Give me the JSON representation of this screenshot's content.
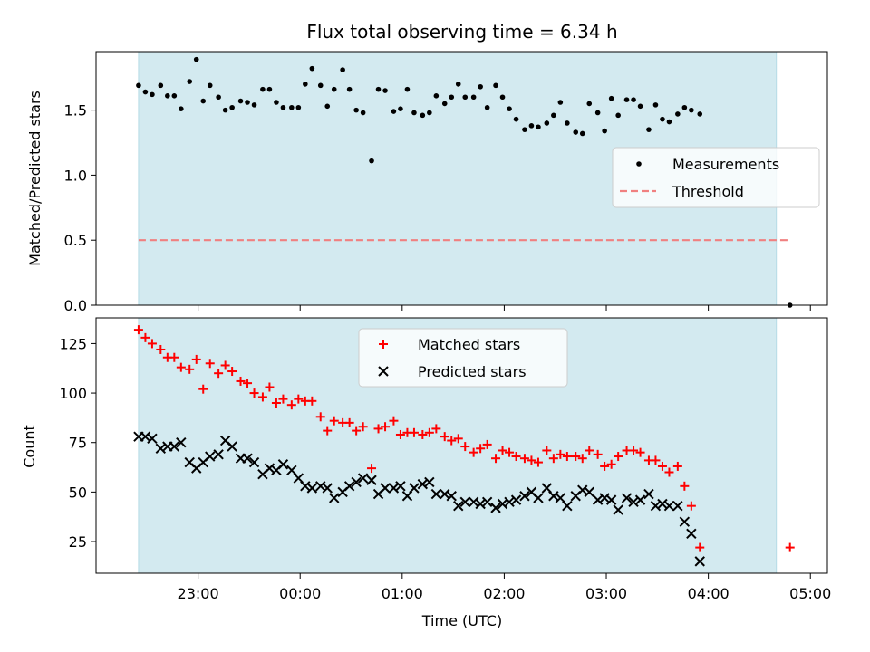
{
  "chart_data": [
    {
      "type": "scatter",
      "title": "Flux total observing time = 6.34 h",
      "xlabel": "",
      "ylabel": "Matched/Predicted stars",
      "ylim": [
        0,
        1.95
      ],
      "yticks": [
        0.0,
        0.5,
        1.0,
        1.5
      ],
      "ytick_labels": [
        "0.0",
        "0.5",
        "1.0",
        "1.5"
      ],
      "grid": false,
      "legend_position": "center-right",
      "observing_window": {
        "start": "22:25",
        "end": "04:40",
        "color": "#d3eaf0"
      },
      "threshold": {
        "name": "Threshold",
        "value": 0.5,
        "color": "#f08080",
        "x_start": "22:25",
        "x_end": "04:48"
      },
      "series": [
        {
          "name": "Measurements",
          "color": "#000000",
          "points": [
            [
              "22:25",
              1.69
            ],
            [
              "22:29",
              1.64
            ],
            [
              "22:33",
              1.62
            ],
            [
              "22:38",
              1.69
            ],
            [
              "22:42",
              1.61
            ],
            [
              "22:46",
              1.61
            ],
            [
              "22:50",
              1.51
            ],
            [
              "22:55",
              1.72
            ],
            [
              "22:59",
              1.89
            ],
            [
              "23:03",
              1.57
            ],
            [
              "23:07",
              1.69
            ],
            [
              "23:12",
              1.6
            ],
            [
              "23:16",
              1.5
            ],
            [
              "23:20",
              1.52
            ],
            [
              "23:25",
              1.57
            ],
            [
              "23:29",
              1.56
            ],
            [
              "23:33",
              1.54
            ],
            [
              "23:38",
              1.66
            ],
            [
              "23:42",
              1.66
            ],
            [
              "23:46",
              1.56
            ],
            [
              "23:50",
              1.52
            ],
            [
              "23:55",
              1.52
            ],
            [
              "23:59",
              1.52
            ],
            [
              "00:03",
              1.7
            ],
            [
              "00:07",
              1.82
            ],
            [
              "00:12",
              1.69
            ],
            [
              "00:16",
              1.53
            ],
            [
              "00:20",
              1.66
            ],
            [
              "00:25",
              1.81
            ],
            [
              "00:29",
              1.66
            ],
            [
              "00:33",
              1.5
            ],
            [
              "00:37",
              1.48
            ],
            [
              "00:42",
              1.11
            ],
            [
              "00:46",
              1.66
            ],
            [
              "00:50",
              1.65
            ],
            [
              "00:55",
              1.49
            ],
            [
              "00:59",
              1.51
            ],
            [
              "01:03",
              1.66
            ],
            [
              "01:07",
              1.48
            ],
            [
              "01:12",
              1.46
            ],
            [
              "01:16",
              1.48
            ],
            [
              "01:20",
              1.61
            ],
            [
              "01:25",
              1.55
            ],
            [
              "01:29",
              1.6
            ],
            [
              "01:33",
              1.7
            ],
            [
              "01:37",
              1.6
            ],
            [
              "01:42",
              1.6
            ],
            [
              "01:46",
              1.68
            ],
            [
              "01:50",
              1.52
            ],
            [
              "01:55",
              1.69
            ],
            [
              "01:59",
              1.6
            ],
            [
              "02:03",
              1.51
            ],
            [
              "02:07",
              1.43
            ],
            [
              "02:12",
              1.35
            ],
            [
              "02:16",
              1.38
            ],
            [
              "02:20",
              1.37
            ],
            [
              "02:25",
              1.4
            ],
            [
              "02:29",
              1.46
            ],
            [
              "02:33",
              1.56
            ],
            [
              "02:37",
              1.4
            ],
            [
              "02:42",
              1.33
            ],
            [
              "02:46",
              1.32
            ],
            [
              "02:50",
              1.55
            ],
            [
              "02:55",
              1.48
            ],
            [
              "02:59",
              1.34
            ],
            [
              "03:03",
              1.59
            ],
            [
              "03:07",
              1.46
            ],
            [
              "03:12",
              1.58
            ],
            [
              "03:16",
              1.58
            ],
            [
              "03:20",
              1.53
            ],
            [
              "03:25",
              1.35
            ],
            [
              "03:29",
              1.54
            ],
            [
              "03:33",
              1.43
            ],
            [
              "03:37",
              1.41
            ],
            [
              "03:42",
              1.47
            ],
            [
              "03:46",
              1.52
            ],
            [
              "03:50",
              1.5
            ],
            [
              "03:55",
              1.47
            ],
            [
              "04:48",
              0.0
            ]
          ]
        }
      ]
    },
    {
      "type": "scatter",
      "title": "",
      "xlabel": "Time (UTC)",
      "ylabel": "Count",
      "ylim": [
        9,
        138
      ],
      "yticks": [
        25,
        50,
        75,
        100,
        125
      ],
      "ytick_labels": [
        "25",
        "50",
        "75",
        "100",
        "125"
      ],
      "xlim": [
        "22:00",
        "05:10"
      ],
      "xticks": [
        "23:00",
        "00:00",
        "01:00",
        "02:00",
        "03:00",
        "04:00",
        "05:00"
      ],
      "grid": false,
      "legend_position": "top-center",
      "observing_window": {
        "start": "22:25",
        "end": "04:40",
        "color": "#d3eaf0"
      },
      "series": [
        {
          "name": "Matched stars",
          "marker": "plus",
          "color": "#ff0000",
          "points": [
            [
              "22:25",
              132
            ],
            [
              "22:29",
              128
            ],
            [
              "22:33",
              125
            ],
            [
              "22:38",
              122
            ],
            [
              "22:42",
              118
            ],
            [
              "22:46",
              118
            ],
            [
              "22:50",
              113
            ],
            [
              "22:55",
              112
            ],
            [
              "22:59",
              117
            ],
            [
              "23:03",
              102
            ],
            [
              "23:07",
              115
            ],
            [
              "23:12",
              110
            ],
            [
              "23:16",
              114
            ],
            [
              "23:20",
              111
            ],
            [
              "23:25",
              106
            ],
            [
              "23:29",
              105
            ],
            [
              "23:33",
              100
            ],
            [
              "23:38",
              98
            ],
            [
              "23:42",
              103
            ],
            [
              "23:46",
              95
            ],
            [
              "23:50",
              97
            ],
            [
              "23:55",
              94
            ],
            [
              "23:59",
              97
            ],
            [
              "00:03",
              96
            ],
            [
              "00:07",
              96
            ],
            [
              "00:12",
              88
            ],
            [
              "00:16",
              81
            ],
            [
              "00:20",
              86
            ],
            [
              "00:25",
              85
            ],
            [
              "00:29",
              85
            ],
            [
              "00:33",
              81
            ],
            [
              "00:37",
              83
            ],
            [
              "00:42",
              62
            ],
            [
              "00:46",
              82
            ],
            [
              "00:50",
              83
            ],
            [
              "00:55",
              86
            ],
            [
              "00:59",
              79
            ],
            [
              "01:03",
              80
            ],
            [
              "01:07",
              80
            ],
            [
              "01:12",
              79
            ],
            [
              "01:16",
              80
            ],
            [
              "01:20",
              82
            ],
            [
              "01:25",
              78
            ],
            [
              "01:29",
              76
            ],
            [
              "01:33",
              77
            ],
            [
              "01:37",
              73
            ],
            [
              "01:42",
              70
            ],
            [
              "01:46",
              72
            ],
            [
              "01:50",
              74
            ],
            [
              "01:55",
              67
            ],
            [
              "01:59",
              71
            ],
            [
              "02:03",
              70
            ],
            [
              "02:07",
              68
            ],
            [
              "02:12",
              67
            ],
            [
              "02:16",
              66
            ],
            [
              "02:20",
              65
            ],
            [
              "02:25",
              71
            ],
            [
              "02:29",
              67
            ],
            [
              "02:33",
              69
            ],
            [
              "02:37",
              68
            ],
            [
              "02:42",
              68
            ],
            [
              "02:46",
              67
            ],
            [
              "02:50",
              71
            ],
            [
              "02:55",
              69
            ],
            [
              "02:59",
              63
            ],
            [
              "03:03",
              64
            ],
            [
              "03:07",
              68
            ],
            [
              "03:12",
              71
            ],
            [
              "03:16",
              71
            ],
            [
              "03:20",
              70
            ],
            [
              "03:25",
              66
            ],
            [
              "03:29",
              66
            ],
            [
              "03:33",
              63
            ],
            [
              "03:37",
              60
            ],
            [
              "03:42",
              63
            ],
            [
              "03:46",
              53
            ],
            [
              "03:50",
              43
            ],
            [
              "03:55",
              22
            ],
            [
              "04:48",
              22
            ]
          ]
        },
        {
          "name": "Predicted stars",
          "marker": "x",
          "color": "#000000",
          "points": [
            [
              "22:25",
              78
            ],
            [
              "22:29",
              78
            ],
            [
              "22:33",
              77
            ],
            [
              "22:38",
              72
            ],
            [
              "22:42",
              73
            ],
            [
              "22:46",
              73
            ],
            [
              "22:50",
              75
            ],
            [
              "22:55",
              65
            ],
            [
              "22:59",
              62
            ],
            [
              "23:03",
              65
            ],
            [
              "23:07",
              68
            ],
            [
              "23:12",
              69
            ],
            [
              "23:16",
              76
            ],
            [
              "23:20",
              73
            ],
            [
              "23:25",
              67
            ],
            [
              "23:29",
              67
            ],
            [
              "23:33",
              65
            ],
            [
              "23:38",
              59
            ],
            [
              "23:42",
              62
            ],
            [
              "23:46",
              61
            ],
            [
              "23:50",
              64
            ],
            [
              "23:55",
              61
            ],
            [
              "23:59",
              57
            ],
            [
              "00:03",
              53
            ],
            [
              "00:07",
              52
            ],
            [
              "00:12",
              53
            ],
            [
              "00:16",
              52
            ],
            [
              "00:20",
              47
            ],
            [
              "00:25",
              50
            ],
            [
              "00:29",
              53
            ],
            [
              "00:33",
              55
            ],
            [
              "00:37",
              57
            ],
            [
              "00:42",
              56
            ],
            [
              "00:46",
              49
            ],
            [
              "00:50",
              52
            ],
            [
              "00:55",
              52
            ],
            [
              "00:59",
              53
            ],
            [
              "01:03",
              48
            ],
            [
              "01:07",
              52
            ],
            [
              "01:12",
              54
            ],
            [
              "01:16",
              55
            ],
            [
              "01:20",
              49
            ],
            [
              "01:25",
              49
            ],
            [
              "01:29",
              48
            ],
            [
              "01:33",
              43
            ],
            [
              "01:37",
              45
            ],
            [
              "01:42",
              45
            ],
            [
              "01:46",
              44
            ],
            [
              "01:50",
              45
            ],
            [
              "01:55",
              42
            ],
            [
              "01:59",
              44
            ],
            [
              "02:03",
              45
            ],
            [
              "02:07",
              46
            ],
            [
              "02:12",
              48
            ],
            [
              "02:16",
              50
            ],
            [
              "02:20",
              47
            ],
            [
              "02:25",
              52
            ],
            [
              "02:29",
              48
            ],
            [
              "02:33",
              47
            ],
            [
              "02:37",
              43
            ],
            [
              "02:42",
              48
            ],
            [
              "02:46",
              51
            ],
            [
              "02:50",
              50
            ],
            [
              "02:55",
              46
            ],
            [
              "02:59",
              47
            ],
            [
              "03:03",
              46
            ],
            [
              "03:07",
              41
            ],
            [
              "03:12",
              47
            ],
            [
              "03:16",
              45
            ],
            [
              "03:20",
              46
            ],
            [
              "03:25",
              49
            ],
            [
              "03:29",
              43
            ],
            [
              "03:33",
              44
            ],
            [
              "03:37",
              43
            ],
            [
              "03:42",
              43
            ],
            [
              "03:46",
              35
            ],
            [
              "03:50",
              29
            ],
            [
              "03:55",
              15
            ]
          ]
        }
      ]
    }
  ]
}
